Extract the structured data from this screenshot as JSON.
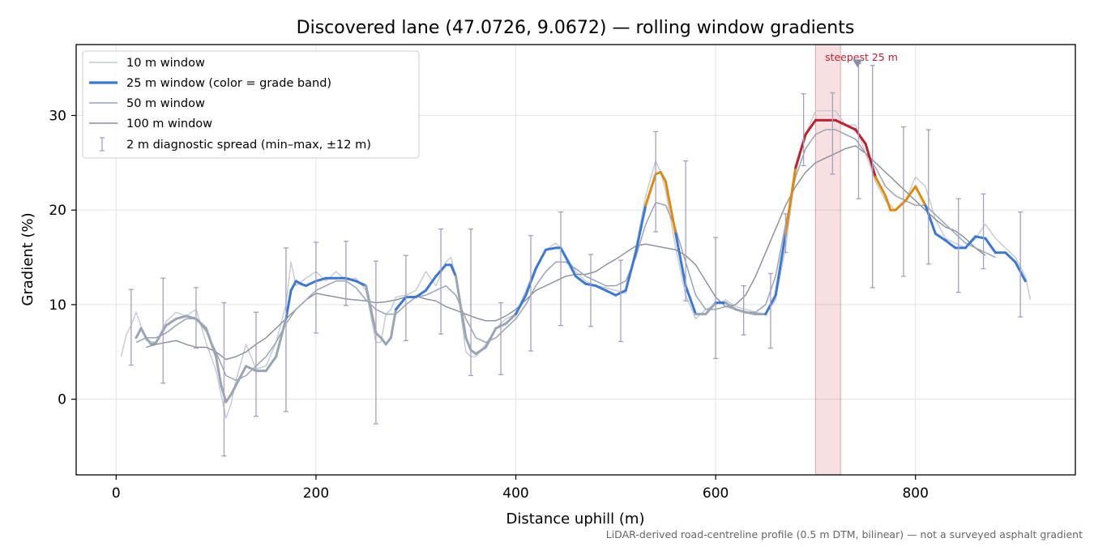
{
  "chart_data": {
    "type": "line",
    "title": "Discovered lane (47.0726, 9.0672) — rolling window gradients",
    "xlabel": "Distance uphill (m)",
    "ylabel": "Gradient (%)",
    "xlim": [
      -40,
      960
    ],
    "ylim": [
      -8,
      37.5
    ],
    "x_ticks": [
      0,
      200,
      400,
      600,
      800
    ],
    "y_ticks": [
      0,
      10,
      20,
      30
    ],
    "grid": true,
    "legend_position": "upper-left",
    "footnote": "LiDAR-derived road-centreline profile (0.5 m DTM, bilinear) — not a surveyed asphalt gradient",
    "annotation": {
      "text": "steepest 25 m",
      "x": 742,
      "y": 35.5
    },
    "highlight_span": {
      "x0": 700,
      "x1": 725
    },
    "grade_band_colors": {
      "low": "#9aa5b4",
      "mid": "#3a78d6",
      "high": "#e08a0c",
      "steep": "#c0202e"
    },
    "grade_band_thresholds": [
      10,
      20,
      25
    ],
    "series": [
      {
        "name": "10 m window",
        "color": "#c3cad3",
        "x": [
          5,
          10,
          15,
          20,
          30,
          40,
          50,
          60,
          70,
          80,
          90,
          100,
          105,
          110,
          115,
          120,
          130,
          140,
          150,
          160,
          170,
          175,
          180,
          185,
          190,
          200,
          210,
          220,
          230,
          240,
          250,
          260,
          265,
          270,
          275,
          280,
          290,
          300,
          310,
          320,
          330,
          335,
          340,
          350,
          355,
          360,
          370,
          380,
          390,
          400,
          410,
          420,
          430,
          440,
          445,
          450,
          460,
          470,
          480,
          490,
          500,
          510,
          520,
          530,
          540,
          545,
          550,
          560,
          570,
          580,
          590,
          600,
          610,
          620,
          630,
          640,
          650,
          660,
          670,
          680,
          690,
          700,
          710,
          720,
          730,
          740,
          750,
          760,
          770,
          780,
          790,
          800,
          810,
          820,
          830,
          840,
          850,
          860,
          870,
          880,
          890,
          900,
          910,
          915
        ],
        "y": [
          4.5,
          6.8,
          7.8,
          9.2,
          6.2,
          6.0,
          8.2,
          9.2,
          8.8,
          9.5,
          6.0,
          3.0,
          0.5,
          -2.0,
          -0.5,
          2.0,
          5.8,
          3.2,
          3.5,
          6.0,
          10.0,
          14.5,
          12.0,
          12.4,
          12.8,
          13.5,
          12.5,
          13.5,
          12.6,
          12.8,
          11.5,
          6.0,
          6.0,
          9.0,
          9.5,
          10.8,
          11.0,
          11.5,
          13.5,
          12.0,
          14.5,
          15.0,
          13.0,
          5.0,
          4.5,
          4.5,
          5.8,
          7.5,
          8.5,
          9.0,
          11.5,
          14.0,
          15.8,
          16.5,
          16.0,
          15.2,
          13.5,
          12.5,
          12.0,
          11.8,
          11.5,
          11.2,
          16.0,
          21.5,
          25.2,
          24.0,
          22.0,
          16.0,
          11.0,
          8.5,
          9.5,
          10.0,
          10.5,
          9.8,
          9.5,
          9.2,
          9.0,
          10.5,
          16.0,
          24.0,
          28.0,
          30.5,
          30.5,
          30.5,
          29.0,
          29.0,
          26.0,
          23.0,
          21.0,
          20.0,
          21.0,
          23.5,
          22.5,
          19.0,
          17.0,
          16.5,
          16.0,
          17.0,
          18.5,
          17.0,
          16.0,
          15.0,
          13.0,
          10.5
        ]
      },
      {
        "name": "25 m window (color = grade band)",
        "color": "#3a78d6",
        "x": [
          20,
          25,
          30,
          35,
          40,
          50,
          60,
          70,
          80,
          90,
          100,
          105,
          110,
          115,
          120,
          130,
          140,
          150,
          160,
          170,
          175,
          180,
          185,
          190,
          200,
          210,
          220,
          230,
          240,
          250,
          260,
          265,
          270,
          275,
          280,
          290,
          300,
          310,
          320,
          330,
          335,
          340,
          350,
          355,
          360,
          370,
          380,
          390,
          400,
          410,
          420,
          430,
          440,
          445,
          450,
          460,
          470,
          480,
          490,
          500,
          510,
          520,
          530,
          540,
          545,
          550,
          560,
          570,
          580,
          590,
          600,
          610,
          620,
          630,
          640,
          650,
          660,
          670,
          680,
          690,
          700,
          710,
          720,
          730,
          740,
          750,
          760,
          770,
          775,
          780,
          790,
          800,
          810,
          820,
          830,
          840,
          850,
          860,
          870,
          880,
          890,
          900,
          910
        ],
        "y": [
          6.5,
          7.5,
          6.5,
          5.8,
          6.0,
          7.8,
          8.5,
          8.8,
          8.5,
          7.5,
          4.5,
          1.5,
          -0.3,
          0.5,
          1.5,
          3.5,
          3.0,
          3.0,
          4.5,
          8.5,
          11.5,
          12.5,
          12.2,
          12.0,
          12.5,
          12.8,
          12.8,
          12.8,
          12.5,
          12.0,
          7.0,
          6.5,
          5.8,
          6.5,
          9.5,
          10.8,
          10.8,
          11.5,
          13.0,
          14.2,
          14.2,
          13.0,
          6.5,
          5.2,
          4.8,
          5.5,
          7.5,
          8.0,
          9.0,
          11.0,
          13.8,
          15.8,
          16.0,
          16.0,
          15.0,
          13.0,
          12.2,
          12.0,
          11.5,
          11.0,
          11.5,
          15.5,
          20.5,
          23.8,
          24.0,
          23.0,
          17.5,
          12.0,
          9.0,
          9.0,
          10.2,
          10.2,
          9.5,
          9.2,
          9.0,
          9.0,
          11.0,
          17.5,
          24.5,
          28.0,
          29.5,
          29.5,
          29.5,
          29.0,
          28.5,
          27.0,
          23.5,
          21.5,
          20.0,
          20.0,
          21.0,
          22.5,
          20.5,
          17.5,
          16.8,
          16.0,
          16.0,
          17.2,
          17.0,
          15.5,
          15.5,
          14.5,
          12.5
        ]
      },
      {
        "name": "50 m window",
        "color": "#9aa5b4",
        "x": [
          20,
          30,
          40,
          50,
          60,
          70,
          80,
          90,
          100,
          110,
          120,
          130,
          140,
          150,
          160,
          170,
          180,
          190,
          200,
          210,
          220,
          230,
          240,
          250,
          260,
          270,
          280,
          290,
          300,
          310,
          320,
          330,
          340,
          350,
          360,
          370,
          380,
          390,
          400,
          410,
          420,
          430,
          440,
          450,
          460,
          470,
          480,
          490,
          500,
          510,
          520,
          530,
          540,
          550,
          560,
          570,
          580,
          590,
          600,
          610,
          620,
          630,
          640,
          650,
          660,
          670,
          680,
          690,
          700,
          710,
          720,
          730,
          740,
          750,
          760,
          770,
          780,
          790,
          800,
          810,
          820,
          830,
          840,
          850,
          860,
          870,
          880
        ],
        "y": [
          6.0,
          6.5,
          6.5,
          7.0,
          7.8,
          8.5,
          8.5,
          7.2,
          5.0,
          2.5,
          2.0,
          2.5,
          3.5,
          4.5,
          6.0,
          8.0,
          9.5,
          10.5,
          11.5,
          12.0,
          12.5,
          12.5,
          11.8,
          10.5,
          9.5,
          9.0,
          9.0,
          10.0,
          10.8,
          11.0,
          11.5,
          12.0,
          11.0,
          8.5,
          6.5,
          6.0,
          6.5,
          7.5,
          8.5,
          10.0,
          12.0,
          13.5,
          14.5,
          14.5,
          13.8,
          13.0,
          12.5,
          12.0,
          12.0,
          12.5,
          15.0,
          18.5,
          20.8,
          20.5,
          18.0,
          14.5,
          11.0,
          9.5,
          9.5,
          9.8,
          9.5,
          9.2,
          9.2,
          10.0,
          13.0,
          18.5,
          23.5,
          26.5,
          28.0,
          28.5,
          28.5,
          28.0,
          27.5,
          26.0,
          24.5,
          22.5,
          21.5,
          21.0,
          20.5,
          20.5,
          19.5,
          18.5,
          17.5,
          16.5,
          16.0,
          15.5,
          15.0
        ]
      },
      {
        "name": "100 m window",
        "color": "#868d99",
        "x": [
          30,
          40,
          50,
          60,
          70,
          80,
          90,
          100,
          110,
          120,
          130,
          140,
          150,
          160,
          170,
          180,
          190,
          200,
          210,
          220,
          230,
          240,
          250,
          260,
          270,
          280,
          290,
          300,
          310,
          320,
          330,
          340,
          350,
          360,
          370,
          380,
          390,
          400,
          410,
          420,
          430,
          440,
          450,
          460,
          470,
          480,
          490,
          500,
          510,
          520,
          530,
          540,
          550,
          560,
          570,
          580,
          590,
          600,
          610,
          620,
          630,
          640,
          650,
          660,
          670,
          680,
          690,
          700,
          710,
          720,
          730,
          740,
          750,
          760,
          770,
          780,
          790,
          800,
          810,
          820,
          830,
          840,
          850,
          860,
          870
        ],
        "y": [
          5.5,
          5.8,
          6.0,
          6.2,
          5.8,
          5.5,
          5.5,
          5.0,
          4.2,
          4.5,
          5.0,
          5.8,
          6.5,
          7.5,
          8.5,
          9.5,
          10.5,
          11.2,
          11.0,
          10.8,
          10.6,
          10.5,
          10.4,
          10.2,
          10.3,
          10.5,
          10.8,
          10.9,
          10.6,
          10.4,
          9.8,
          9.4,
          9.0,
          8.6,
          8.3,
          8.3,
          8.8,
          9.5,
          10.5,
          11.5,
          12.0,
          12.5,
          13.0,
          13.2,
          13.2,
          13.5,
          14.2,
          14.8,
          15.5,
          16.2,
          16.4,
          16.2,
          16.0,
          15.8,
          15.2,
          14.2,
          12.5,
          10.8,
          9.8,
          10.0,
          11.0,
          13.0,
          15.5,
          18.0,
          20.5,
          22.5,
          24.0,
          25.0,
          25.5,
          26.0,
          26.5,
          26.8,
          26.0,
          25.0,
          24.0,
          23.0,
          22.0,
          21.0,
          20.0,
          19.0,
          18.2,
          17.8,
          17.0,
          16.0,
          15.2
        ]
      }
    ],
    "diagnostic_spread": {
      "name": "2 m diagnostic spread (min–max, ±12 m)",
      "color": "#a89dc2",
      "x": [
        15,
        47,
        80,
        108,
        140,
        170,
        200,
        230,
        260,
        290,
        325,
        355,
        385,
        415,
        445,
        475,
        505,
        540,
        570,
        600,
        628,
        655,
        670,
        688,
        717,
        743,
        757,
        788,
        813,
        843,
        868,
        905
      ],
      "low": [
        3.6,
        1.7,
        5.4,
        -6.0,
        -1.8,
        -1.3,
        7.0,
        9.9,
        -2.6,
        6.2,
        6.9,
        2.5,
        2.6,
        5.1,
        7.8,
        7.7,
        6.1,
        17.7,
        10.4,
        4.3,
        6.8,
        5.4,
        15.5,
        24.7,
        23.8,
        21.2,
        11.8,
        13.0,
        14.3,
        11.3,
        13.8,
        8.7
      ],
      "high": [
        11.6,
        12.8,
        11.8,
        10.2,
        9.2,
        16.0,
        16.6,
        16.7,
        14.6,
        15.2,
        18.0,
        18.0,
        10.2,
        17.3,
        19.8,
        15.3,
        14.7,
        28.3,
        25.2,
        17.1,
        12.0,
        13.3,
        19.6,
        32.3,
        32.4,
        35.5,
        35.3,
        28.8,
        28.5,
        21.2,
        21.7,
        19.8
      ]
    }
  }
}
